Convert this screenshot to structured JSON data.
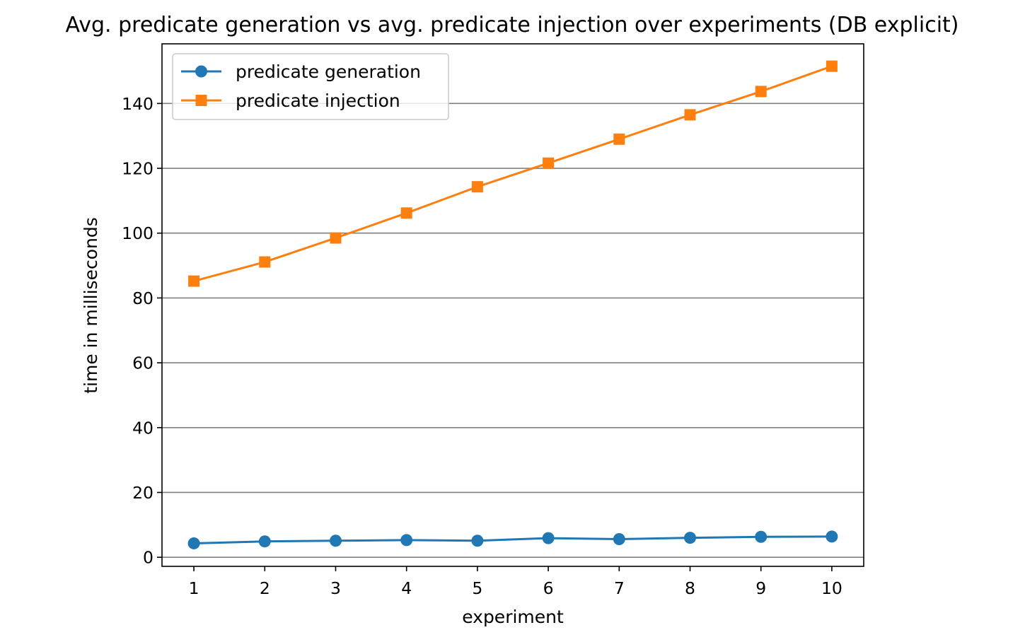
{
  "chart_data": {
    "type": "line",
    "title": "Avg. predicate generation vs avg. predicate injection over experiments (DB explicit)",
    "xlabel": "experiment",
    "ylabel": "time in milliseconds",
    "x": [
      1,
      2,
      3,
      4,
      5,
      6,
      7,
      8,
      9,
      10
    ],
    "x_ticks": [
      "1",
      "2",
      "3",
      "4",
      "5",
      "6",
      "7",
      "8",
      "9",
      "10"
    ],
    "y_ticks": [
      "0",
      "20",
      "40",
      "60",
      "80",
      "100",
      "120",
      "140"
    ],
    "y_tick_values": [
      0,
      20,
      40,
      60,
      80,
      100,
      120,
      140
    ],
    "xlim": [
      0.55,
      10.45
    ],
    "ylim": [
      -2.8,
      158.4
    ],
    "grid": "horizontal",
    "legend_position": "upper-left",
    "series": [
      {
        "name": "predicate generation",
        "color": "#1f77b4",
        "marker": "circle",
        "values": [
          4.3,
          4.9,
          5.1,
          5.3,
          5.1,
          5.9,
          5.6,
          6.0,
          6.3,
          6.4
        ]
      },
      {
        "name": "predicate injection",
        "color": "#ff7f0e",
        "marker": "square",
        "values": [
          85.2,
          91.1,
          98.5,
          106.2,
          114.3,
          121.6,
          129.0,
          136.5,
          143.7,
          151.5
        ]
      }
    ]
  }
}
